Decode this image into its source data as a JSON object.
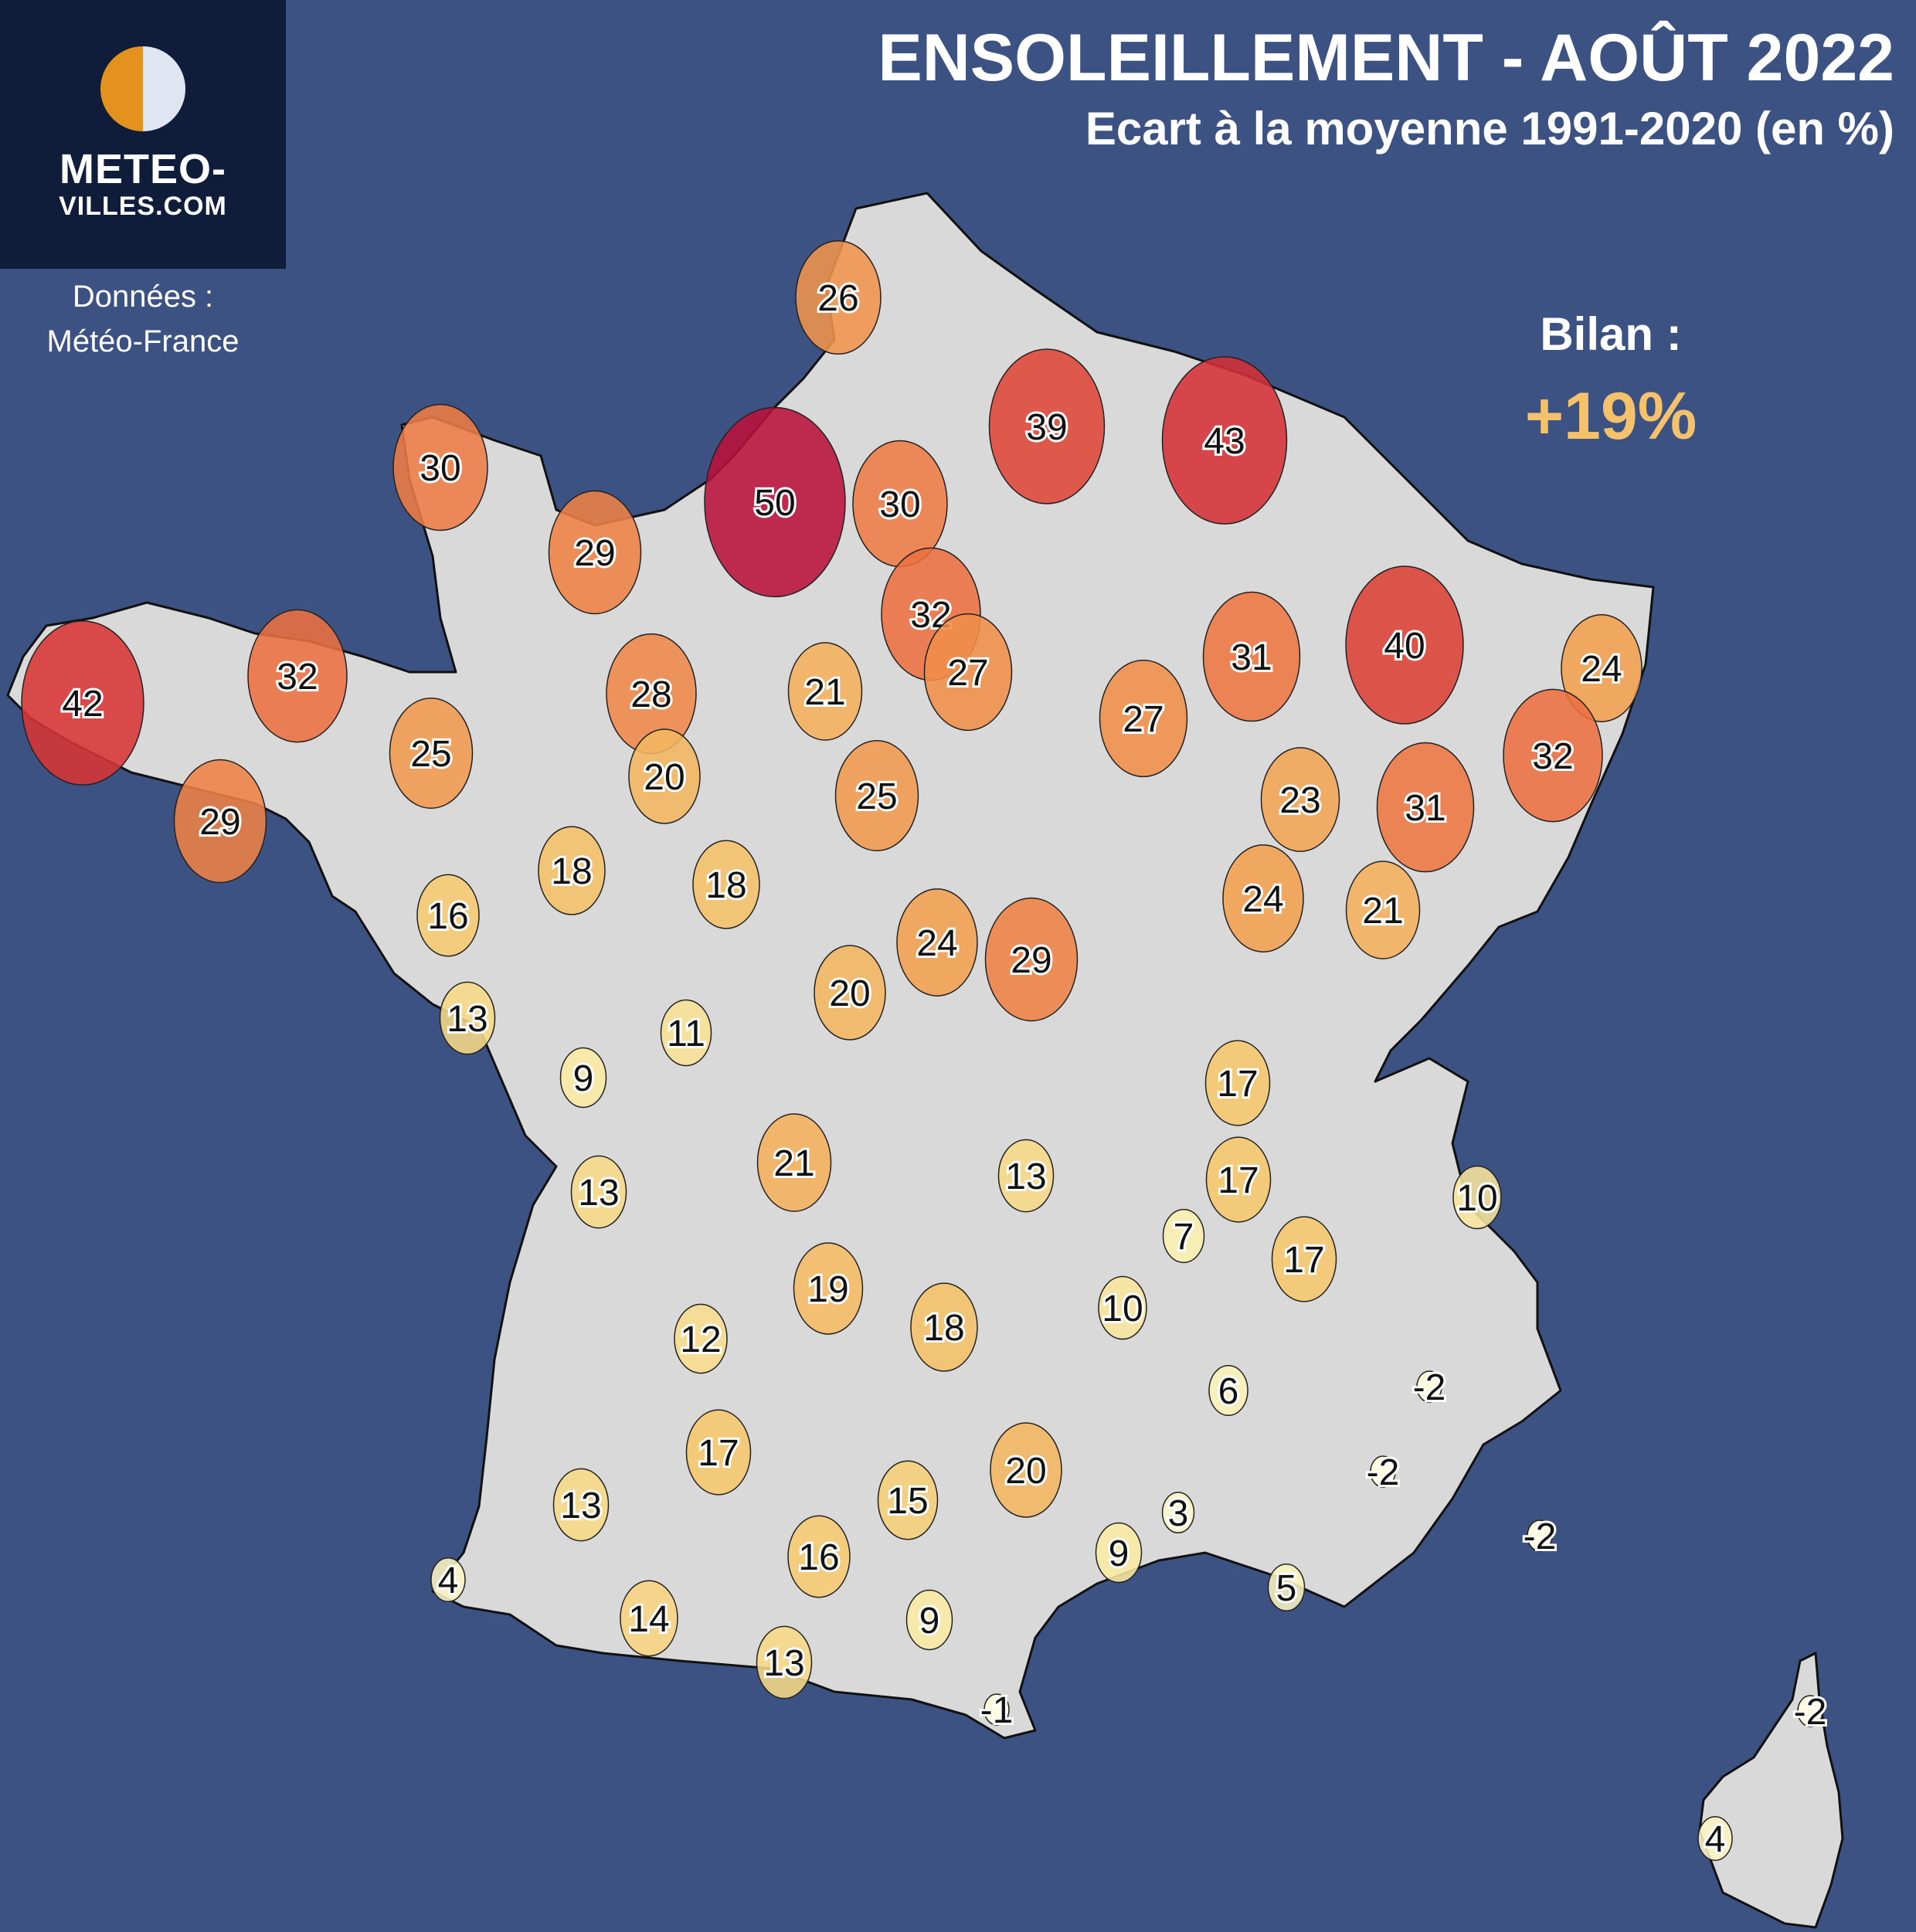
{
  "title": "ENSOLEILLEMENT - AOÛT 2022",
  "subtitle": "Ecart à la moyenne 1991-2020 (en %)",
  "logo": {
    "line1": "METEO-",
    "line2": "VILLES.COM",
    "icon": "half-sun-half-moon-icon"
  },
  "source": {
    "line1": "Données :",
    "line2": "Météo-France"
  },
  "summary": {
    "label": "Bilan :",
    "value": "+19%"
  },
  "colors": {
    "background": "#3c5282",
    "land": "#d9d9d9",
    "logo_bg": "#0f1d3a",
    "highlight": "#f5c26b"
  },
  "map_data": {
    "type": "proportional-symbol-map",
    "region": "France",
    "unit": "%",
    "values": [
      26,
      30,
      29,
      50,
      30,
      39,
      43,
      42,
      32,
      25,
      28,
      32,
      27,
      21,
      20,
      25,
      27,
      31,
      40,
      24,
      32,
      23,
      31,
      29,
      16,
      18,
      18,
      24,
      21,
      29,
      24,
      20,
      13,
      11,
      9,
      13,
      21,
      13,
      17,
      17,
      17,
      7,
      10,
      10,
      19,
      18,
      12,
      6,
      -2,
      -2,
      -2,
      17,
      13,
      15,
      20,
      3,
      16,
      9,
      5,
      4,
      14,
      9,
      13,
      -1,
      -2,
      4
    ]
  }
}
